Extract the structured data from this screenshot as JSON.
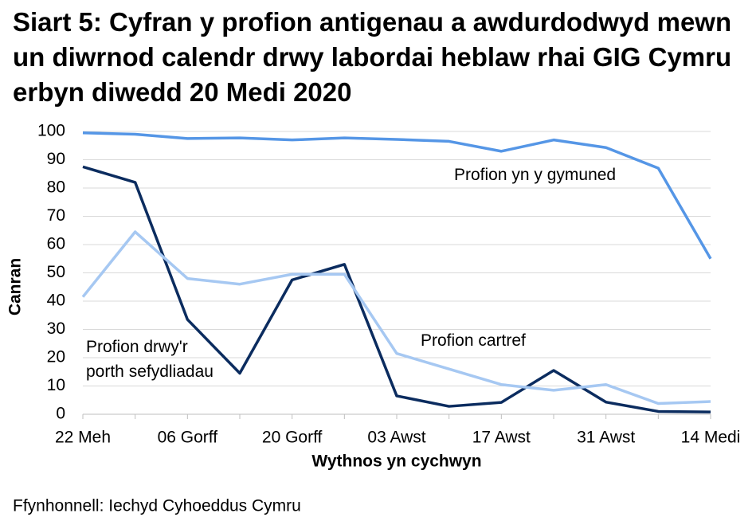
{
  "chart_data": {
    "type": "line",
    "title": "Siart 5: Cyfran y profion antigenau a awdurdodwyd mewn un diwrnod calendr drwy labordai heblaw rhai GIG Cymru erbyn diwedd 20 Medi 2020",
    "x_label": "Wythnos yn cychwyn",
    "y_label": "Canran",
    "source": "Ffynhonnell: Iechyd Cyhoeddus Cymru",
    "categories": [
      "22 Meh",
      null,
      "06 Gorff",
      null,
      "20 Gorff",
      null,
      "03 Awst",
      null,
      "17 Awst",
      null,
      "31 Awst",
      null,
      "14 Medi"
    ],
    "series": [
      {
        "name": "Profion yn y gymuned",
        "color": "#5596e6",
        "values": [
          99.5,
          99,
          97.5,
          97.7,
          97,
          97.7,
          97.2,
          96.5,
          93,
          97,
          94.3,
          87,
          55
        ]
      },
      {
        "name": "Profion drwy'r porth sefydliadau",
        "color": "#0b2c5f",
        "values": [
          87.5,
          82,
          33.5,
          14.5,
          47.5,
          53,
          6.5,
          2.8,
          4.2,
          15.5,
          4.3,
          1,
          0.8
        ]
      },
      {
        "name": "Profion cartref",
        "color": "#a6c8f2",
        "values": [
          41.5,
          64.5,
          48,
          46,
          49.5,
          49.5,
          21.5,
          16,
          10.5,
          8.5,
          10.5,
          3.8,
          4.5
        ]
      }
    ],
    "ylim": [
      0,
      100
    ],
    "yticks": [
      0,
      10,
      20,
      30,
      40,
      50,
      60,
      70,
      80,
      90,
      100
    ],
    "grid": true
  }
}
